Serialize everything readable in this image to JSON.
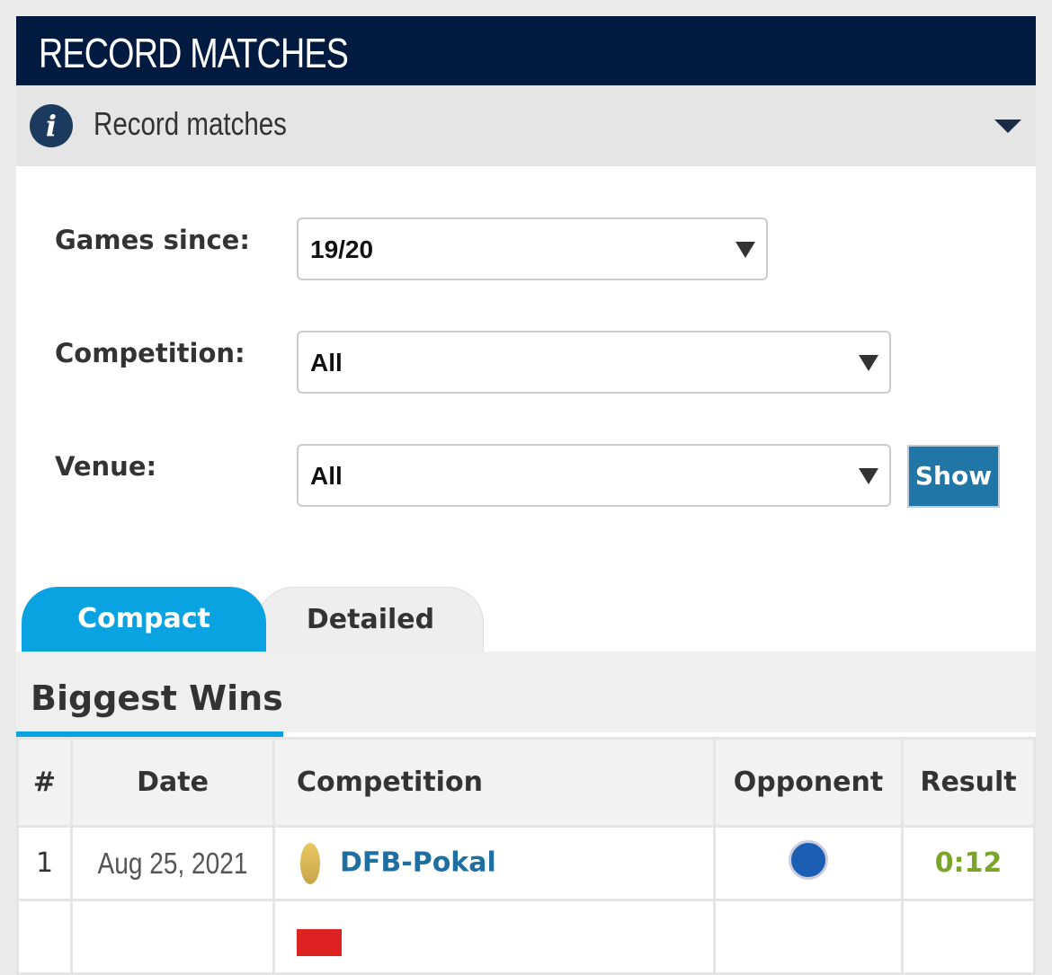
{
  "header": {
    "title": "RECORD MATCHES"
  },
  "info": {
    "label": "Record matches"
  },
  "filters": {
    "games_since": {
      "label": "Games since:",
      "value": "19/20"
    },
    "competition": {
      "label": "Competition:",
      "value": "All"
    },
    "venue": {
      "label": "Venue:",
      "value": "All"
    },
    "show_label": "Show"
  },
  "tabs": [
    {
      "label": "Compact",
      "active": true
    },
    {
      "label": "Detailed",
      "active": false
    }
  ],
  "section": {
    "title": "Biggest Wins"
  },
  "table": {
    "headers": [
      "#",
      "Date",
      "Competition",
      "Opponent",
      "Result"
    ],
    "rows": [
      {
        "num": "1",
        "date": "Aug 25, 2021",
        "competition": "DFB-Pokal",
        "result": "0:12"
      }
    ]
  },
  "colors": {
    "header": "#001a40",
    "accent": "#0aa3e2",
    "link": "#1f6fa0",
    "win": "#7aa52a"
  }
}
